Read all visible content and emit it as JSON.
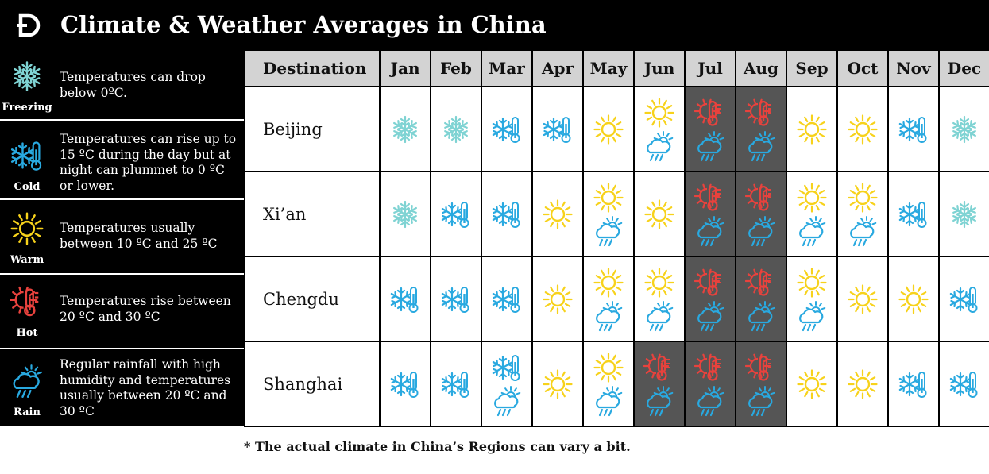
{
  "header": {
    "title": "Climate & Weather Averages in China"
  },
  "legend": [
    {
      "key": "freezing",
      "name": "Freezing",
      "text": "Temperatures can drop below 0ºC."
    },
    {
      "key": "cold",
      "name": "Cold",
      "text": "Temperatures can rise up to 15 ºC during the day but at night can plummet to 0 ºC or lower."
    },
    {
      "key": "warm",
      "name": "Warm",
      "text": "Temperatures usually between 10 ºC and 25 ºC"
    },
    {
      "key": "hot",
      "name": "Hot",
      "text": "Temperatures rise between 20 ºC and 30 ºC"
    },
    {
      "key": "rain",
      "name": "Rain",
      "text": "Regular rainfall with high humidity and temperatures usually between 20 ºC and 30 ºC"
    }
  ],
  "table": {
    "destination_header": "Destination",
    "months": [
      "Jan",
      "Feb",
      "Mar",
      "Apr",
      "May",
      "Jun",
      "Jul",
      "Aug",
      "Sep",
      "Oct",
      "Nov",
      "Dec"
    ],
    "rows": [
      {
        "city": "Beijing",
        "cells": [
          [
            "freezing"
          ],
          [
            "freezing"
          ],
          [
            "cold"
          ],
          [
            "cold"
          ],
          [
            "warm"
          ],
          [
            "warm",
            "rain"
          ],
          [
            "hot",
            "rain"
          ],
          [
            "hot",
            "rain"
          ],
          [
            "warm"
          ],
          [
            "warm"
          ],
          [
            "cold"
          ],
          [
            "freezing"
          ]
        ]
      },
      {
        "city": "Xi’an",
        "cells": [
          [
            "freezing"
          ],
          [
            "cold"
          ],
          [
            "cold"
          ],
          [
            "warm"
          ],
          [
            "warm",
            "rain"
          ],
          [
            "warm"
          ],
          [
            "hot",
            "rain"
          ],
          [
            "hot",
            "rain"
          ],
          [
            "warm",
            "rain"
          ],
          [
            "warm",
            "rain"
          ],
          [
            "cold"
          ],
          [
            "freezing"
          ]
        ]
      },
      {
        "city": "Chengdu",
        "cells": [
          [
            "cold"
          ],
          [
            "cold"
          ],
          [
            "cold"
          ],
          [
            "warm"
          ],
          [
            "warm",
            "rain"
          ],
          [
            "warm",
            "rain"
          ],
          [
            "hot",
            "rain"
          ],
          [
            "hot",
            "rain"
          ],
          [
            "warm",
            "rain"
          ],
          [
            "warm"
          ],
          [
            "warm"
          ],
          [
            "cold"
          ]
        ]
      },
      {
        "city": "Shanghai",
        "cells": [
          [
            "cold"
          ],
          [
            "cold"
          ],
          [
            "cold",
            "rain"
          ],
          [
            "warm"
          ],
          [
            "warm",
            "rain"
          ],
          [
            "hot",
            "rain"
          ],
          [
            "hot",
            "rain"
          ],
          [
            "hot",
            "rain"
          ],
          [
            "warm"
          ],
          [
            "warm"
          ],
          [
            "cold"
          ],
          [
            "cold"
          ]
        ]
      }
    ]
  },
  "colors": {
    "freezing": "#7fd3d3",
    "cold": "#29a9e0",
    "warm": "#f7d21b",
    "hot": "#e8423d",
    "rain": "#29a9e0",
    "hot_cell_bg": "#555555"
  },
  "footnote": "* The actual climate in China’s Regions can vary a bit."
}
